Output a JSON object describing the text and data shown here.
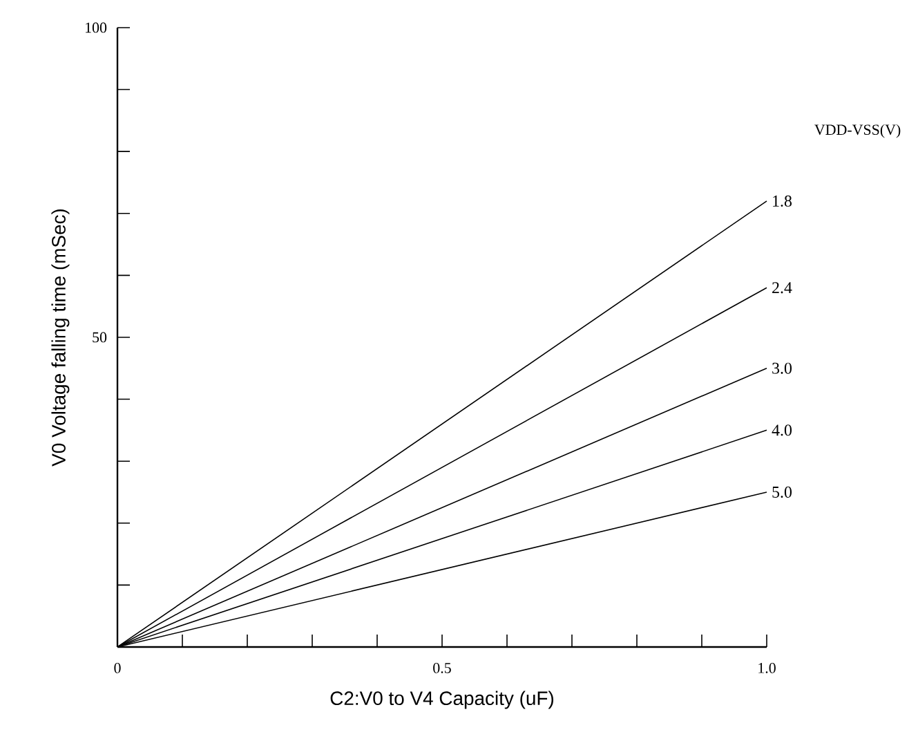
{
  "chart_data": {
    "type": "line",
    "xlabel": "C2:V0 to V4 Capacity (uF)",
    "ylabel": "V0 Voltage falling time (mSec)",
    "legend_title": "VDD-VSS(V)",
    "x": [
      0,
      1.0
    ],
    "series": [
      {
        "name": "1.8",
        "color": "#000000",
        "values": [
          0,
          72
        ]
      },
      {
        "name": "2.4",
        "color": "#000000",
        "values": [
          0,
          58
        ]
      },
      {
        "name": "3.0",
        "color": "#000000",
        "values": [
          0,
          45
        ]
      },
      {
        "name": "4.0",
        "color": "#000000",
        "values": [
          0,
          35
        ]
      },
      {
        "name": "5.0",
        "color": "#000000",
        "values": [
          0,
          25
        ]
      }
    ],
    "xlim": [
      0,
      1.0
    ],
    "ylim": [
      0,
      100
    ],
    "xticks": [
      0,
      {
        "value": 0.1,
        "label": null
      },
      {
        "value": 0.2,
        "label": null
      },
      {
        "value": 0.3,
        "label": null
      },
      {
        "value": 0.4,
        "label": null
      },
      0.5,
      {
        "value": 0.6,
        "label": null
      },
      {
        "value": 0.7,
        "label": null
      },
      {
        "value": 0.8,
        "label": null
      },
      {
        "value": 0.9,
        "label": null
      },
      {
        "value": 1.0,
        "label": "1.0"
      }
    ],
    "yticks": [
      {
        "value": 0,
        "label": null
      },
      {
        "value": 10,
        "label": null
      },
      {
        "value": 20,
        "label": null
      },
      {
        "value": 30,
        "label": null
      },
      {
        "value": 40,
        "label": null
      },
      50,
      {
        "value": 60,
        "label": null
      },
      {
        "value": 70,
        "label": null
      },
      {
        "value": 80,
        "label": null
      },
      {
        "value": 90,
        "label": null
      },
      100
    ],
    "grid": false,
    "marker": "none",
    "line_style": "solid"
  }
}
